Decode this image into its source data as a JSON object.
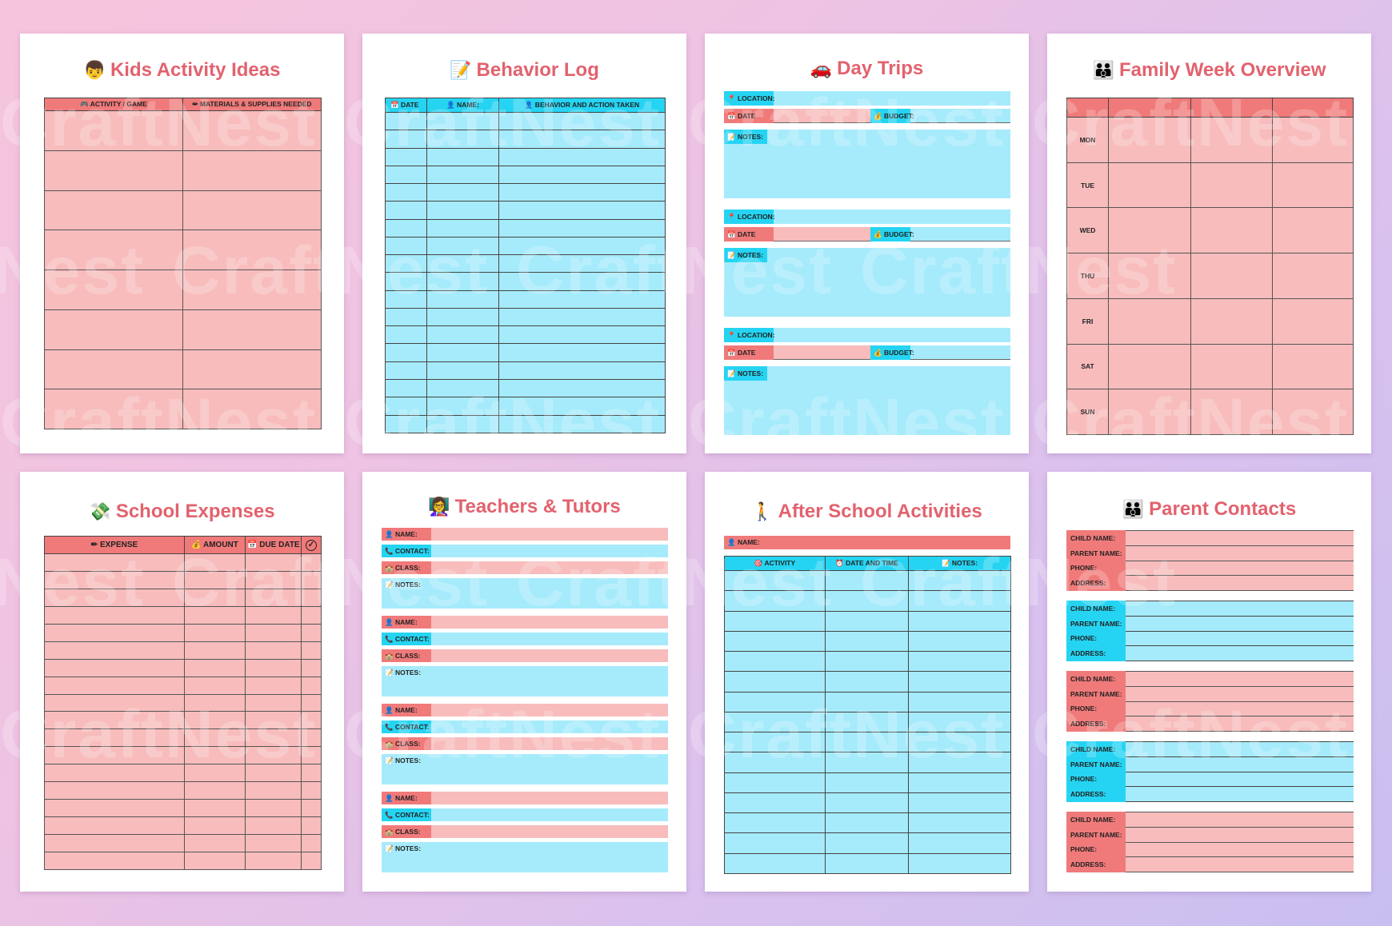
{
  "brand_watermark": "CraftNest",
  "colors": {
    "pink": "#f8bcbc",
    "pink_header": "#f07a7a",
    "blue": "#a6ebfb",
    "blue_header": "#25d4f2",
    "title": "#e2626e"
  },
  "pages": {
    "kids_activity": {
      "icon": "child-face-icon",
      "icon_glyph": "👦",
      "title": "Kids Activity Ideas",
      "col1": "🎮 ACTIVITY / GAME",
      "col2": "✏ MATERIALS & SUPPLIES NEEDED"
    },
    "behavior_log": {
      "icon": "memo-icon",
      "icon_glyph": "📝",
      "title": "Behavior Log",
      "col1": "📅 DATE",
      "col2": "👤 NAME:",
      "col3": "👤 BEHAVIOR AND ACTION TAKEN"
    },
    "day_trips": {
      "icon": "car-icon",
      "icon_glyph": "🚗",
      "title": "Day Trips",
      "location": "📍 LOCATION:",
      "date": "📅 DATE",
      "budget": "💰 BUDGET:",
      "notes": "📝 NOTES:"
    },
    "family_week": {
      "icon": "family-icon",
      "icon_glyph": "👪",
      "title": "Family Week Overview",
      "days": [
        "MON",
        "TUE",
        "WED",
        "THU",
        "FRI",
        "SAT",
        "SUN"
      ]
    },
    "school_expenses": {
      "icon": "money-icon",
      "icon_glyph": "💸",
      "title": "School Expenses",
      "col1": "✏ EXPENSE",
      "col2": "💰 AMOUNT",
      "col3": "📅 DUE DATE",
      "col4": "✓"
    },
    "teachers": {
      "icon": "teacher-icon",
      "icon_glyph": "👩‍🏫",
      "title": "Teachers & Tutors",
      "name": "👤 NAME:",
      "contact": "📞 CONTACT:",
      "class": "🏫 CLASS:",
      "notes": "📝 NOTES:"
    },
    "after_school": {
      "icon": "walking-child-icon",
      "icon_glyph": "🚶",
      "title": "After School Activities",
      "name": "👤 NAME:",
      "col1": "🎯 ACTIVITY",
      "col2": "⏰ DATE AND TIME",
      "col3": "📝 NOTES:"
    },
    "parent_contacts": {
      "icon": "parents-icon",
      "icon_glyph": "👪",
      "title": "Parent Contacts",
      "fields": [
        "CHILD NAME:",
        "PARENT NAME:",
        "PHONE:",
        "ADDRESS:"
      ]
    }
  }
}
